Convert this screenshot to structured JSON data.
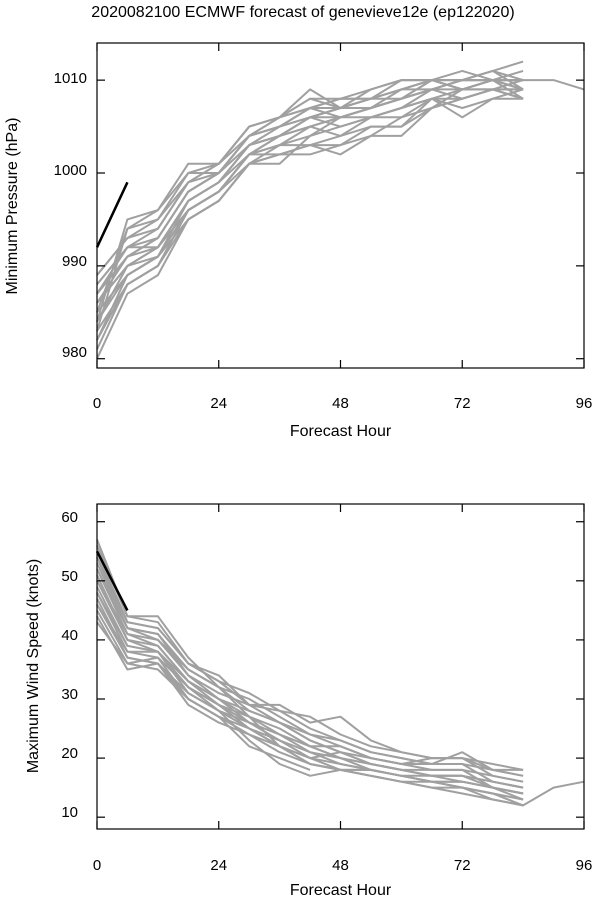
{
  "title": "2020082100 ECMWF forecast of genevieve12e (ep122020)",
  "colors": {
    "ensemble": "#a0a0a0",
    "observed": "#000000",
    "axes": "#000000"
  },
  "chart_data": [
    {
      "type": "line",
      "xlabel": "Forecast Hour",
      "ylabel": "Minimum Pressure (hPa)",
      "xlim": [
        0,
        96
      ],
      "ylim": [
        979,
        1014
      ],
      "xticks": [
        0,
        24,
        48,
        72,
        96
      ],
      "yticks": [
        980,
        990,
        1000,
        1010
      ],
      "grid": false,
      "observed": {
        "x": [
          0,
          6
        ],
        "y": [
          992,
          999
        ]
      },
      "ensemble_x": [
        0,
        6,
        12,
        18,
        24,
        30,
        36,
        42,
        48,
        54,
        60,
        66,
        72,
        78,
        84,
        90,
        96
      ],
      "ensemble": [
        [
          980,
          987,
          989,
          995,
          997,
          1001,
          1001,
          1004,
          1005,
          1006,
          1007,
          1008,
          1009,
          1010,
          1010,
          1010,
          1009
        ],
        [
          982,
          988,
          990,
          996,
          998,
          1001,
          1003,
          1005,
          1006,
          1007,
          1008,
          1009,
          1010,
          1011,
          1012
        ],
        [
          983,
          988,
          990,
          996,
          998,
          1002,
          1003,
          1004,
          1006,
          1007,
          1008,
          1009,
          1010,
          1010,
          1010
        ],
        [
          984,
          989,
          991,
          996,
          998,
          1002,
          1004,
          1005,
          1006,
          1006,
          1007,
          1009,
          1010,
          1010,
          1009
        ],
        [
          985,
          989,
          991,
          997,
          999,
          1002,
          1004,
          1006,
          1006,
          1007,
          1008,
          1009,
          1009,
          1010,
          1010
        ],
        [
          986,
          990,
          992,
          997,
          999,
          1003,
          1004,
          1006,
          1007,
          1007,
          1008,
          1010,
          1010,
          1010,
          1011
        ],
        [
          986,
          990,
          992,
          997,
          999,
          1003,
          1004,
          1006,
          1007,
          1008,
          1008,
          1010,
          1010,
          1011,
          1010
        ],
        [
          987,
          991,
          993,
          998,
          1000,
          1003,
          1005,
          1006,
          1007,
          1007,
          1009,
          1009,
          1010,
          1010,
          1010
        ],
        [
          987,
          991,
          993,
          998,
          1000,
          1004,
          1005,
          1007,
          1007,
          1008,
          1009,
          1010,
          1011,
          1010,
          1010
        ],
        [
          988,
          992,
          993,
          998,
          1000,
          1004,
          1005,
          1007,
          1008,
          1008,
          1009,
          1010,
          1010,
          1011,
          1009
        ],
        [
          988,
          992,
          994,
          999,
          1000,
          1004,
          1006,
          1007,
          1008,
          1008,
          1009,
          1010,
          1009,
          1010,
          1009
        ],
        [
          989,
          993,
          994,
          999,
          1001,
          1005,
          1006,
          1008,
          1007,
          1008,
          1010,
          1010,
          1009,
          1010,
          1008
        ],
        [
          989,
          993,
          995,
          999,
          1001,
          1005,
          1006,
          1009,
          1007,
          1009,
          1010,
          1010,
          1009,
          1009,
          1008
        ],
        [
          985,
          994,
          996,
          1000,
          1001,
          1004,
          1006,
          1008,
          1008,
          1009,
          1010,
          1010,
          1009,
          1009,
          1009
        ],
        [
          984,
          995,
          996,
          1001,
          1001,
          1005,
          1006,
          1007,
          1006,
          1007,
          1008,
          1009,
          1008,
          1009,
          1008
        ],
        [
          983,
          994,
          995,
          1000,
          1000,
          1004,
          1005,
          1006,
          1005,
          1006,
          1007,
          1008,
          1007,
          1008,
          1008
        ],
        [
          981,
          988,
          990,
          995,
          997,
          1001,
          1002,
          1003,
          1004,
          1005,
          1005,
          1008,
          1006,
          1008,
          1009
        ],
        [
          982,
          989,
          991,
          996,
          998,
          1002,
          1002,
          1002,
          1003,
          1004,
          1006,
          1007,
          1008,
          1009,
          1010
        ],
        [
          984,
          990,
          991,
          995,
          997,
          1001,
          1002,
          1003,
          1002,
          1004,
          1004,
          1007,
          1008,
          1009,
          1009
        ],
        [
          986,
          991,
          992,
          996,
          998,
          1002,
          1003,
          1003,
          1003,
          1005,
          1005,
          1007,
          1009,
          1010,
          1009
        ],
        [
          987,
          992,
          992,
          997,
          999,
          1003,
          1004,
          1005,
          1004,
          1006,
          1006,
          1008,
          1008,
          1009,
          1008
        ]
      ]
    },
    {
      "type": "line",
      "xlabel": "Forecast Hour",
      "ylabel": "Maximum Wind Speed (knots)",
      "xlim": [
        0,
        96
      ],
      "ylim": [
        8,
        63
      ],
      "xticks": [
        0,
        24,
        48,
        72,
        96
      ],
      "yticks": [
        10,
        20,
        30,
        40,
        50,
        60
      ],
      "grid": false,
      "observed": {
        "x": [
          0,
          6
        ],
        "y": [
          55,
          45
        ]
      },
      "ensemble_x": [
        0,
        6,
        12,
        18,
        24,
        30,
        36,
        42,
        48,
        54,
        60,
        66,
        72,
        78,
        84,
        90,
        96
      ],
      "ensemble": [
        [
          57,
          44,
          44,
          37,
          32,
          27,
          22,
          19,
          18,
          18,
          17,
          16,
          15,
          14,
          12,
          15,
          16
        ],
        [
          56,
          44,
          43,
          36,
          34,
          29,
          29,
          26,
          27,
          23,
          21,
          20,
          20,
          18,
          18
        ],
        [
          55,
          43,
          42,
          36,
          33,
          31,
          28,
          25,
          23,
          21,
          20,
          19,
          21,
          18,
          17
        ],
        [
          54,
          42,
          40,
          35,
          32,
          30,
          27,
          24,
          22,
          20,
          19,
          20,
          20,
          17,
          16
        ],
        [
          53,
          42,
          41,
          34,
          31,
          29,
          26,
          23,
          21,
          20,
          19,
          19,
          19,
          16,
          15
        ],
        [
          52,
          41,
          40,
          34,
          30,
          28,
          26,
          23,
          21,
          19,
          18,
          18,
          18,
          15,
          14
        ],
        [
          51,
          40,
          39,
          33,
          30,
          27,
          25,
          22,
          20,
          19,
          18,
          17,
          17,
          16,
          15
        ],
        [
          50,
          40,
          38,
          33,
          29,
          27,
          24,
          22,
          20,
          19,
          18,
          17,
          17,
          15,
          14
        ],
        [
          49,
          39,
          38,
          32,
          29,
          26,
          24,
          21,
          20,
          18,
          17,
          17,
          16,
          15,
          14
        ],
        [
          48,
          38,
          37,
          32,
          28,
          26,
          23,
          21,
          19,
          18,
          17,
          16,
          16,
          15,
          13
        ],
        [
          47,
          37,
          36,
          31,
          28,
          25,
          23,
          20,
          19,
          18,
          17,
          16,
          15,
          14,
          13
        ],
        [
          46,
          37,
          36,
          30,
          27,
          25,
          22,
          20,
          18,
          17,
          16,
          16,
          15,
          14,
          13
        ],
        [
          45,
          36,
          35,
          30,
          27,
          24,
          22,
          19,
          18,
          17,
          16,
          15,
          15,
          13,
          12
        ],
        [
          44,
          35,
          36,
          29,
          26,
          24,
          21,
          19,
          18,
          17,
          16,
          15,
          14,
          13,
          12
        ],
        [
          43,
          36,
          37,
          30,
          27,
          22,
          20,
          18
        ],
        [
          48,
          39,
          38,
          31,
          28,
          23,
          19,
          17,
          18,
          18,
          17,
          16,
          16,
          15,
          14
        ],
        [
          46,
          38,
          38,
          32,
          29,
          25,
          22,
          20,
          21,
          19,
          18,
          17,
          17,
          16,
          15
        ],
        [
          50,
          41,
          39,
          33,
          30,
          26,
          24,
          22,
          22,
          20,
          19,
          18,
          18,
          17,
          16
        ],
        [
          52,
          42,
          41,
          35,
          32,
          28,
          26,
          24,
          23,
          21,
          20,
          19,
          19,
          18,
          17
        ],
        [
          54,
          43,
          42,
          36,
          33,
          29,
          28,
          27,
          24,
          22,
          21,
          20,
          20,
          19,
          18
        ]
      ]
    }
  ]
}
